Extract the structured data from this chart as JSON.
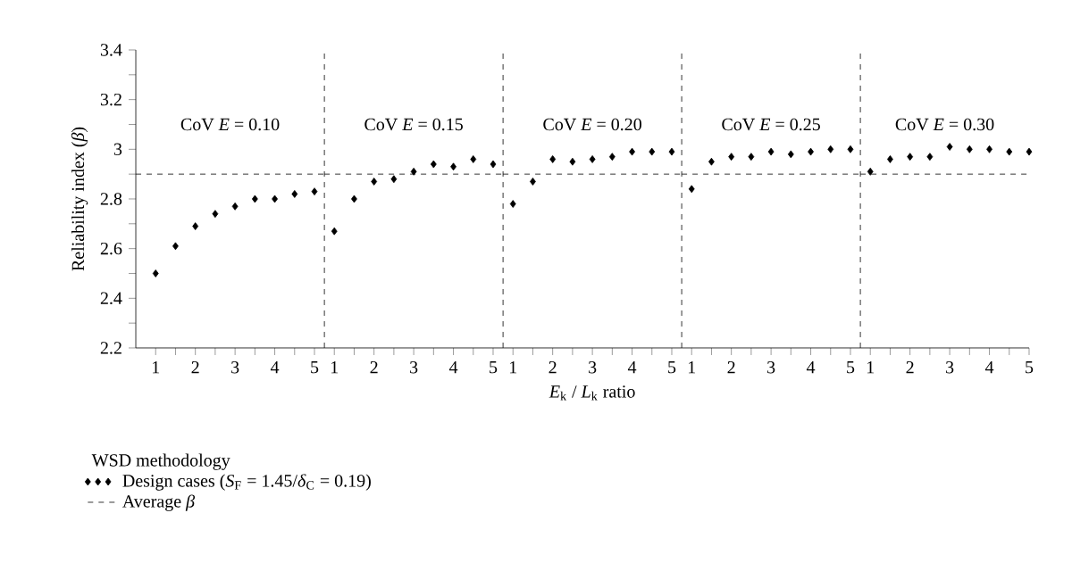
{
  "chart_data": [
    {
      "type": "scatter",
      "title": "CoV *E* = 0.10",
      "ylabel": "Reliability index (*β*)",
      "legend_title": "WSD methodology",
      "legend": "bottom",
      "ylim": [
        2.2,
        3.4
      ],
      "yticks": [
        2.2,
        {
          "value": 2.3,
          "label": null
        },
        2.4,
        {
          "value": 2.5,
          "label": null
        },
        2.6,
        {
          "value": 2.7,
          "label": null
        },
        2.8,
        {
          "value": 2.9,
          "label": null
        },
        3,
        {
          "value": 3.1,
          "label": null
        },
        3.2,
        {
          "value": 3.3,
          "label": null
        },
        3.4
      ],
      "xlim": [
        0.5,
        5.25
      ],
      "xticks": [
        1,
        {
          "value": 1.5,
          "label": null
        },
        2,
        {
          "value": 2.5,
          "label": null
        },
        3,
        {
          "value": 3.5,
          "label": null
        },
        4,
        {
          "value": 4.5,
          "label": null
        },
        5
      ],
      "series": [
        {
          "name": "Design cases (*S*$_{F}$ = 1.45/*δ*$_{C}$ = 0.19)",
          "color": "#000000",
          "marker": "diamond",
          "x": [
            1,
            1.5,
            2,
            2.5,
            3,
            3.5,
            4,
            4.5,
            5
          ],
          "values": [
            2.5,
            2.61,
            2.69,
            2.74,
            2.77,
            2.8,
            2.8,
            2.82,
            2.83
          ]
        },
        {
          "name": "Average *β*",
          "type": "line",
          "color": "#000000",
          "marker": "none",
          "line_style": "dashed",
          "x": [
            0.5,
            5.25
          ],
          "values": [
            2.9,
            2.9
          ]
        }
      ],
      "ref_lines": [
        {
          "axis": "x",
          "value": 5.25,
          "color": "#000000",
          "line_style": "dashed"
        }
      ]
    },
    {
      "type": "scatter",
      "title": "CoV *E* = 0.15",
      "tick_labels": "x",
      "ylim": [
        2.2,
        3.4
      ],
      "xlim": [
        0.75,
        5.25
      ],
      "xticks": [
        1,
        {
          "value": 1.5,
          "label": null
        },
        2,
        {
          "value": 2.5,
          "label": null
        },
        3,
        {
          "value": 3.5,
          "label": null
        },
        4,
        {
          "value": 4.5,
          "label": null
        },
        5
      ],
      "series": [
        {
          "color": "#000000",
          "marker": "diamond",
          "x": [
            1,
            1.5,
            2,
            2.5,
            3,
            3.5,
            4,
            4.5,
            5
          ],
          "values": [
            2.67,
            2.8,
            2.87,
            2.88,
            2.91,
            2.94,
            2.93,
            2.96,
            2.94
          ]
        },
        {
          "type": "line",
          "color": "#000000",
          "marker": "none",
          "line_style": "dashed",
          "x": [
            0.75,
            5.25
          ],
          "values": [
            2.9,
            2.9
          ]
        }
      ],
      "ref_lines": [
        {
          "axis": "x",
          "value": 5.25,
          "color": "#000000",
          "line_style": "dashed"
        }
      ]
    },
    {
      "type": "scatter",
      "title": "CoV *E* = 0.20",
      "xlabel": "*E*$_{k}$ / *L*$_{k}$ ratio",
      "tick_labels": "x",
      "ylim": [
        2.2,
        3.4
      ],
      "xlim": [
        0.75,
        5.25
      ],
      "xticks": [
        1,
        {
          "value": 1.5,
          "label": null
        },
        2,
        {
          "value": 2.5,
          "label": null
        },
        3,
        {
          "value": 3.5,
          "label": null
        },
        4,
        {
          "value": 4.5,
          "label": null
        },
        5
      ],
      "series": [
        {
          "color": "#000000",
          "marker": "diamond",
          "x": [
            1,
            1.5,
            2,
            2.5,
            3,
            3.5,
            4,
            4.5,
            5
          ],
          "values": [
            2.78,
            2.87,
            2.96,
            2.95,
            2.96,
            2.97,
            2.99,
            2.99,
            2.99
          ]
        },
        {
          "type": "line",
          "color": "#000000",
          "marker": "none",
          "line_style": "dashed",
          "x": [
            0.75,
            5.25
          ],
          "values": [
            2.9,
            2.9
          ]
        }
      ],
      "ref_lines": [
        {
          "axis": "x",
          "value": 5.25,
          "color": "#000000",
          "line_style": "dashed"
        }
      ]
    },
    {
      "type": "scatter",
      "title": "CoV *E* = 0.25",
      "tick_labels": "x",
      "ylim": [
        2.2,
        3.4
      ],
      "xlim": [
        0.75,
        5.25
      ],
      "xticks": [
        1,
        {
          "value": 1.5,
          "label": null
        },
        2,
        {
          "value": 2.5,
          "label": null
        },
        3,
        {
          "value": 3.5,
          "label": null
        },
        4,
        {
          "value": 4.5,
          "label": null
        },
        5
      ],
      "series": [
        {
          "color": "#000000",
          "marker": "diamond",
          "x": [
            1,
            1.5,
            2,
            2.5,
            3,
            3.5,
            4,
            4.5,
            5
          ],
          "values": [
            2.84,
            2.95,
            2.97,
            2.97,
            2.99,
            2.98,
            2.99,
            3.0,
            3.0
          ]
        },
        {
          "type": "line",
          "color": "#000000",
          "marker": "none",
          "line_style": "dashed",
          "x": [
            0.75,
            5.25
          ],
          "values": [
            2.9,
            2.9
          ]
        }
      ],
      "ref_lines": [
        {
          "axis": "x",
          "value": 5.25,
          "color": "#000000",
          "line_style": "dashed"
        }
      ]
    },
    {
      "type": "scatter",
      "title": "CoV *E* = 0.30",
      "tick_labels": "x",
      "ylim": [
        2.2,
        3.4
      ],
      "xlim": [
        0.75,
        5
      ],
      "xticks": [
        1,
        {
          "value": 1.5,
          "label": null
        },
        2,
        {
          "value": 2.5,
          "label": null
        },
        3,
        {
          "value": 3.5,
          "label": null
        },
        4,
        {
          "value": 4.5,
          "label": null
        },
        5
      ],
      "series": [
        {
          "color": "#000000",
          "marker": "diamond",
          "x": [
            1,
            1.5,
            2,
            2.5,
            3,
            3.5,
            4,
            4.5,
            5
          ],
          "values": [
            2.91,
            2.96,
            2.97,
            2.97,
            3.01,
            3.0,
            3.0,
            2.99,
            2.99
          ]
        },
        {
          "type": "line",
          "color": "#000000",
          "marker": "none",
          "line_style": "dashed",
          "x": [
            0.75,
            5
          ],
          "values": [
            2.9,
            2.9
          ]
        }
      ]
    }
  ]
}
